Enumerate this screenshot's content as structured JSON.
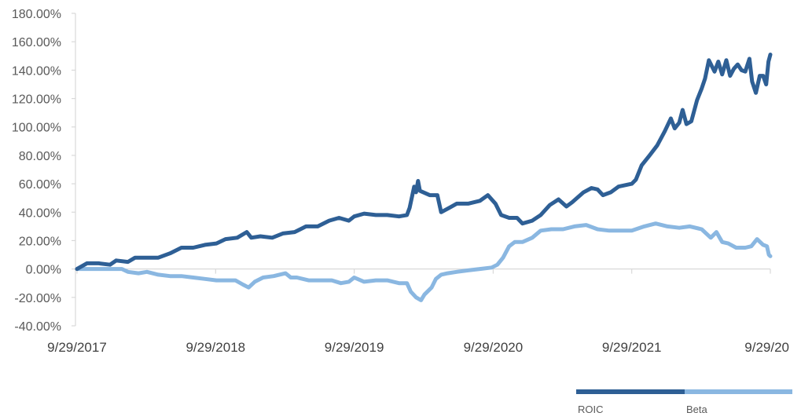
{
  "chart_data": {
    "type": "line",
    "title": "",
    "xlabel": "",
    "ylabel": "",
    "ylim": [
      -40,
      180
    ],
    "xlim": [
      "2017-09-29",
      "2022-09-29"
    ],
    "grid": false,
    "legend_position": "bottom-right",
    "y_ticks": [
      {
        "value": 180,
        "label": "180.00%"
      },
      {
        "value": 160,
        "label": "160.00%"
      },
      {
        "value": 140,
        "label": "140.00%"
      },
      {
        "value": 120,
        "label": "120.00%"
      },
      {
        "value": 100,
        "label": "100.00%"
      },
      {
        "value": 80,
        "label": "80.00%"
      },
      {
        "value": 60,
        "label": "60.00%"
      },
      {
        "value": 40,
        "label": "40.00%"
      },
      {
        "value": 20,
        "label": "20.00%"
      },
      {
        "value": 0,
        "label": "0.00%"
      },
      {
        "value": -20,
        "label": "-20.00%"
      },
      {
        "value": -40,
        "label": "-40.00%"
      }
    ],
    "x_ticks": [
      {
        "date": "2017-09-29",
        "label": "9/29/2017"
      },
      {
        "date": "2018-09-29",
        "label": "9/29/2018"
      },
      {
        "date": "2019-09-29",
        "label": "9/29/2019"
      },
      {
        "date": "2020-09-29",
        "label": "9/29/2020"
      },
      {
        "date": "2021-09-29",
        "label": "9/29/2021"
      },
      {
        "date": "2022-09-29",
        "label": "9/29/20"
      }
    ],
    "series": [
      {
        "name": "ROIC",
        "color": "#2e5f95",
        "points": [
          [
            "2017-09-29",
            0
          ],
          [
            "2017-10-25",
            4
          ],
          [
            "2017-11-25",
            4
          ],
          [
            "2017-12-25",
            3
          ],
          [
            "2018-01-10",
            6
          ],
          [
            "2018-02-10",
            5
          ],
          [
            "2018-03-01",
            8
          ],
          [
            "2018-04-01",
            8
          ],
          [
            "2018-05-01",
            8
          ],
          [
            "2018-06-01",
            11
          ],
          [
            "2018-07-01",
            15
          ],
          [
            "2018-08-01",
            15
          ],
          [
            "2018-09-01",
            17
          ],
          [
            "2018-10-01",
            18
          ],
          [
            "2018-10-25",
            21
          ],
          [
            "2018-11-25",
            22
          ],
          [
            "2018-12-20",
            26
          ],
          [
            "2019-01-01",
            22
          ],
          [
            "2019-01-25",
            23
          ],
          [
            "2019-02-25",
            22
          ],
          [
            "2019-03-25",
            25
          ],
          [
            "2019-04-25",
            26
          ],
          [
            "2019-05-25",
            30
          ],
          [
            "2019-06-25",
            30
          ],
          [
            "2019-07-25",
            34
          ],
          [
            "2019-08-20",
            36
          ],
          [
            "2019-09-15",
            34
          ],
          [
            "2019-09-29",
            37
          ],
          [
            "2019-10-25",
            39
          ],
          [
            "2019-11-25",
            38
          ],
          [
            "2019-12-25",
            38
          ],
          [
            "2020-01-25",
            37
          ],
          [
            "2020-02-15",
            38
          ],
          [
            "2020-02-22",
            43
          ],
          [
            "2020-03-05",
            58
          ],
          [
            "2020-03-10",
            54
          ],
          [
            "2020-03-15",
            62
          ],
          [
            "2020-03-20",
            55
          ],
          [
            "2020-04-15",
            52
          ],
          [
            "2020-05-05",
            52
          ],
          [
            "2020-05-15",
            40
          ],
          [
            "2020-06-05",
            43
          ],
          [
            "2020-06-25",
            46
          ],
          [
            "2020-07-25",
            46
          ],
          [
            "2020-08-25",
            48
          ],
          [
            "2020-09-15",
            52
          ],
          [
            "2020-10-05",
            46
          ],
          [
            "2020-10-20",
            38
          ],
          [
            "2020-11-10",
            36
          ],
          [
            "2020-12-01",
            36
          ],
          [
            "2020-12-15",
            32
          ],
          [
            "2021-01-10",
            34
          ],
          [
            "2021-02-01",
            38
          ],
          [
            "2021-02-25",
            45
          ],
          [
            "2021-03-20",
            49
          ],
          [
            "2021-04-10",
            44
          ],
          [
            "2021-04-25",
            47
          ],
          [
            "2021-05-25",
            54
          ],
          [
            "2021-06-15",
            57
          ],
          [
            "2021-07-01",
            56
          ],
          [
            "2021-07-15",
            52
          ],
          [
            "2021-08-05",
            54
          ],
          [
            "2021-08-25",
            58
          ],
          [
            "2021-09-29",
            60
          ],
          [
            "2021-10-10",
            63
          ],
          [
            "2021-10-25",
            73
          ],
          [
            "2021-11-15",
            80
          ],
          [
            "2021-12-05",
            87
          ],
          [
            "2021-12-25",
            97
          ],
          [
            "2022-01-10",
            106
          ],
          [
            "2022-01-20",
            99
          ],
          [
            "2022-02-01",
            103
          ],
          [
            "2022-02-10",
            112
          ],
          [
            "2022-02-20",
            102
          ],
          [
            "2022-03-05",
            104
          ],
          [
            "2022-03-20",
            119
          ],
          [
            "2022-04-01",
            127
          ],
          [
            "2022-04-10",
            134
          ],
          [
            "2022-04-20",
            147
          ],
          [
            "2022-05-05",
            139
          ],
          [
            "2022-05-15",
            146
          ],
          [
            "2022-05-25",
            137
          ],
          [
            "2022-06-05",
            147
          ],
          [
            "2022-06-15",
            136
          ],
          [
            "2022-06-25",
            141
          ],
          [
            "2022-07-05",
            144
          ],
          [
            "2022-07-15",
            140
          ],
          [
            "2022-07-25",
            139
          ],
          [
            "2022-08-05",
            148
          ],
          [
            "2022-08-12",
            132
          ],
          [
            "2022-08-22",
            124
          ],
          [
            "2022-09-01",
            136
          ],
          [
            "2022-09-10",
            136
          ],
          [
            "2022-09-18",
            130
          ],
          [
            "2022-09-24",
            146
          ],
          [
            "2022-09-29",
            151
          ]
        ]
      },
      {
        "name": "Beta",
        "color": "#8ab7e1",
        "points": [
          [
            "2017-09-29",
            0
          ],
          [
            "2017-11-25",
            0
          ],
          [
            "2018-01-25",
            0
          ],
          [
            "2018-02-10",
            -2
          ],
          [
            "2018-03-10",
            -3
          ],
          [
            "2018-04-01",
            -2
          ],
          [
            "2018-05-01",
            -4
          ],
          [
            "2018-06-01",
            -5
          ],
          [
            "2018-07-01",
            -5
          ],
          [
            "2018-08-01",
            -6
          ],
          [
            "2018-09-01",
            -7
          ],
          [
            "2018-10-01",
            -8
          ],
          [
            "2018-10-25",
            -8
          ],
          [
            "2018-11-20",
            -8
          ],
          [
            "2018-12-10",
            -11
          ],
          [
            "2018-12-25",
            -13
          ],
          [
            "2019-01-10",
            -9
          ],
          [
            "2019-02-01",
            -6
          ],
          [
            "2019-03-01",
            -5
          ],
          [
            "2019-04-01",
            -3
          ],
          [
            "2019-04-15",
            -6
          ],
          [
            "2019-05-01",
            -6
          ],
          [
            "2019-06-01",
            -8
          ],
          [
            "2019-07-01",
            -8
          ],
          [
            "2019-08-01",
            -8
          ],
          [
            "2019-08-25",
            -10
          ],
          [
            "2019-09-15",
            -9
          ],
          [
            "2019-09-29",
            -6
          ],
          [
            "2019-10-25",
            -9
          ],
          [
            "2019-11-25",
            -8
          ],
          [
            "2019-12-25",
            -8
          ],
          [
            "2020-01-25",
            -10
          ],
          [
            "2020-02-15",
            -10
          ],
          [
            "2020-02-25",
            -16
          ],
          [
            "2020-03-10",
            -20
          ],
          [
            "2020-03-23",
            -22
          ],
          [
            "2020-04-01",
            -18
          ],
          [
            "2020-04-20",
            -13
          ],
          [
            "2020-05-01",
            -7
          ],
          [
            "2020-05-15",
            -4
          ],
          [
            "2020-06-01",
            -3
          ],
          [
            "2020-06-25",
            -2
          ],
          [
            "2020-07-25",
            -1
          ],
          [
            "2020-08-25",
            0
          ],
          [
            "2020-09-25",
            1
          ],
          [
            "2020-10-10",
            3
          ],
          [
            "2020-10-25",
            8
          ],
          [
            "2020-11-10",
            16
          ],
          [
            "2020-11-25",
            19
          ],
          [
            "2020-12-15",
            19
          ],
          [
            "2021-01-10",
            22
          ],
          [
            "2021-02-01",
            27
          ],
          [
            "2021-03-01",
            28
          ],
          [
            "2021-04-01",
            28
          ],
          [
            "2021-05-01",
            30
          ],
          [
            "2021-06-01",
            31
          ],
          [
            "2021-07-01",
            28
          ],
          [
            "2021-08-01",
            27
          ],
          [
            "2021-09-01",
            27
          ],
          [
            "2021-09-29",
            27
          ],
          [
            "2021-11-01",
            30
          ],
          [
            "2021-12-01",
            32
          ],
          [
            "2022-01-01",
            30
          ],
          [
            "2022-02-01",
            29
          ],
          [
            "2022-03-01",
            30
          ],
          [
            "2022-04-01",
            28
          ],
          [
            "2022-04-25",
            22
          ],
          [
            "2022-05-10",
            26
          ],
          [
            "2022-05-25",
            19
          ],
          [
            "2022-06-10",
            18
          ],
          [
            "2022-07-01",
            15
          ],
          [
            "2022-07-25",
            15
          ],
          [
            "2022-08-10",
            16
          ],
          [
            "2022-08-25",
            21
          ],
          [
            "2022-09-10",
            17
          ],
          [
            "2022-09-20",
            16
          ],
          [
            "2022-09-25",
            10
          ],
          [
            "2022-09-29",
            9
          ]
        ]
      }
    ]
  }
}
